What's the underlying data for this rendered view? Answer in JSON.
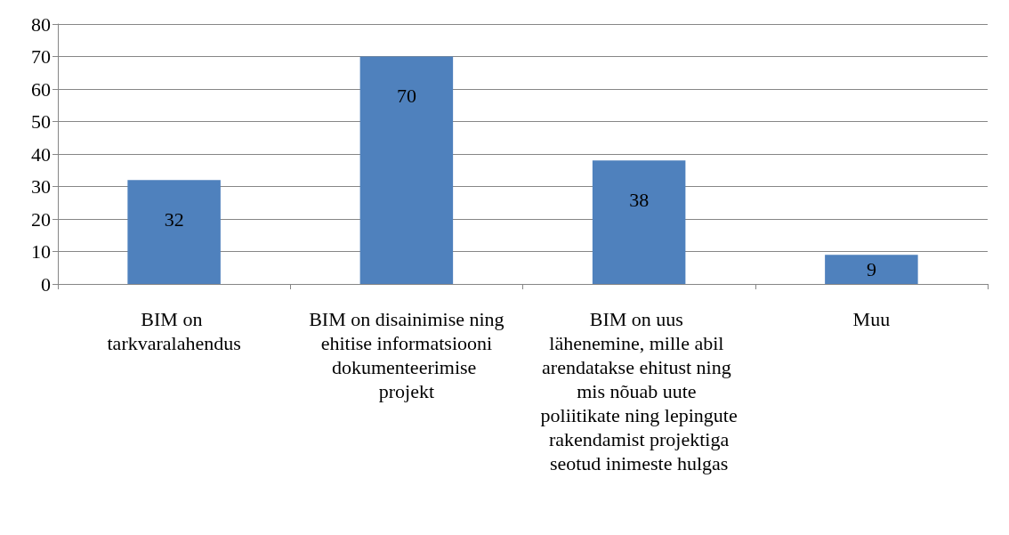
{
  "chart_data": {
    "type": "bar",
    "categories": [
      "BIM on tarkvaralahendus",
      "BIM on disainimise ning ehitise informatsiooni dokumenteerimise projekt",
      "BIM on uus lähenemine, mille abil arendatakse ehitust ning mis nõuab uute poliitikate ning lepingute rakendamist projektiga seotud inimeste hulgas",
      "Muu"
    ],
    "values": [
      32,
      70,
      38,
      9
    ],
    "color": "#4f81bd",
    "ylim": [
      0,
      80
    ],
    "yticks": [
      0,
      10,
      20,
      30,
      40,
      50,
      60,
      70,
      80
    ],
    "grid": "y",
    "data_labels": true
  }
}
